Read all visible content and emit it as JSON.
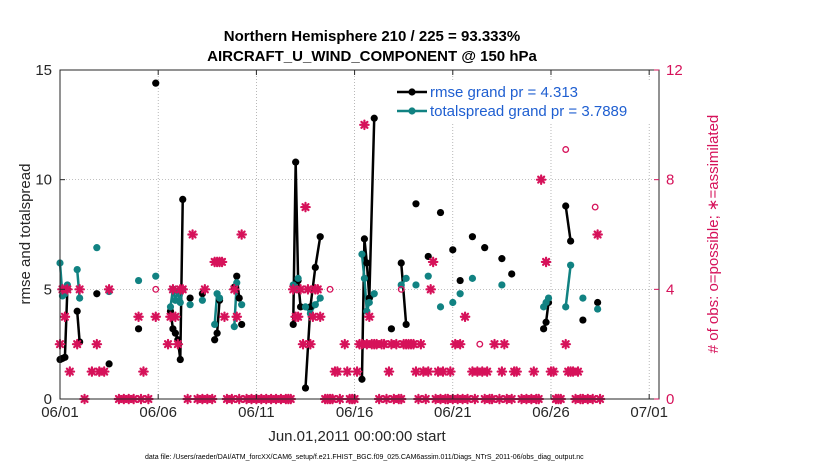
{
  "chart_data": {
    "type": "line",
    "title": "Northern Hemisphere 210 / 225 = 93.333%",
    "subtitle": "AIRCRAFT_U_WIND_COMPONENT @ 150 hPa",
    "xlabel": "Jun.01,2011 00:00:00 start",
    "ylabel": "rmse and totalspread",
    "ylabel_right": "# of obs: o=possible; ∗=assimilated",
    "footnote": "data file: /Users/raeder/DAI/ATM_forcXX/CAM6_setup/f.e21.FHIST_BGC.f09_025.CAM6assim.011/Diags_NTrS_2011-06/obs_diag_output.nc",
    "xlim": [
      0,
      30.5
    ],
    "ylim": [
      0,
      15
    ],
    "ylim_right": [
      0,
      12
    ],
    "grid": true,
    "legend_position": "top-right",
    "x_tick_labels": [
      {
        "x": 0,
        "label": "06/01"
      },
      {
        "x": 5,
        "label": "06/06"
      },
      {
        "x": 10,
        "label": "06/11"
      },
      {
        "x": 15,
        "label": "06/16"
      },
      {
        "x": 20,
        "label": "06/21"
      },
      {
        "x": 25,
        "label": "06/26"
      },
      {
        "x": 30,
        "label": "07/01"
      }
    ],
    "y_ticks": [
      0,
      5,
      10,
      15
    ],
    "y_ticks_right": [
      0,
      4,
      8,
      12
    ],
    "series": [
      {
        "name": "rmse grand pr = 4.313",
        "color": "#000000",
        "marker": "filled-circle",
        "segments": [
          [
            [
              0.0,
              1.8
            ],
            [
              0.125,
              1.85
            ],
            [
              0.25,
              1.9
            ],
            [
              0.375,
              5.0
            ]
          ],
          [
            [
              0.875,
              4.0
            ],
            [
              1.0,
              2.6
            ]
          ],
          [
            [
              1.875,
              4.8
            ]
          ],
          [
            [
              2.5,
              1.6
            ]
          ],
          [
            [
              4.0,
              3.2
            ]
          ],
          [
            [
              4.875,
              14.4
            ]
          ],
          [
            [
              5.625,
              4.0
            ],
            [
              5.75,
              3.2
            ],
            [
              5.875,
              3.0
            ],
            [
              6.0,
              2.7
            ],
            [
              6.125,
              1.8
            ],
            [
              6.25,
              9.1
            ]
          ],
          [
            [
              6.625,
              4.6
            ]
          ],
          [
            [
              7.25,
              4.8
            ]
          ],
          [
            [
              7.875,
              2.7
            ],
            [
              8.0,
              3.0
            ],
            [
              8.125,
              4.5
            ]
          ],
          [
            [
              8.875,
              5.1
            ],
            [
              9.0,
              5.6
            ],
            [
              9.125,
              4.6
            ]
          ],
          [
            [
              9.25,
              3.4
            ]
          ],
          [
            [
              11.875,
              3.4
            ],
            [
              12.0,
              10.8
            ],
            [
              12.125,
              5.4
            ],
            [
              12.25,
              4.2
            ]
          ],
          [
            [
              12.5,
              0.5
            ],
            [
              12.75,
              4.2
            ],
            [
              13.0,
              6.0
            ],
            [
              13.25,
              7.4
            ]
          ],
          [
            [
              15.375,
              0.9
            ],
            [
              15.5,
              7.3
            ],
            [
              15.625,
              6.2
            ],
            [
              15.75,
              4.6
            ],
            [
              16.0,
              12.8
            ]
          ],
          [
            [
              16.875,
              3.2
            ]
          ],
          [
            [
              17.375,
              6.2
            ],
            [
              17.625,
              3.4
            ]
          ],
          [
            [
              18.125,
              8.9
            ]
          ],
          [
            [
              18.75,
              6.5
            ]
          ],
          [
            [
              19.375,
              8.5
            ]
          ],
          [
            [
              20.0,
              6.8
            ]
          ],
          [
            [
              20.375,
              5.4
            ]
          ],
          [
            [
              21.0,
              7.4
            ]
          ],
          [
            [
              21.625,
              6.9
            ]
          ],
          [
            [
              22.5,
              6.4
            ]
          ],
          [
            [
              23.0,
              5.7
            ]
          ],
          [
            [
              24.625,
              3.2
            ],
            [
              24.75,
              3.5
            ],
            [
              24.875,
              4.4
            ]
          ],
          [
            [
              25.75,
              8.8
            ],
            [
              26.0,
              7.2
            ]
          ],
          [
            [
              26.625,
              3.6
            ]
          ],
          [
            [
              27.375,
              4.4
            ]
          ]
        ]
      },
      {
        "name": "totalspread grand pr = 3.7889",
        "color": "#118282",
        "marker": "filled-circle",
        "segments": [
          [
            [
              0.0,
              6.2
            ],
            [
              0.125,
              4.7
            ],
            [
              0.25,
              4.8
            ],
            [
              0.375,
              5.2
            ]
          ],
          [
            [
              0.875,
              5.9
            ],
            [
              1.0,
              4.6
            ]
          ],
          [
            [
              1.875,
              6.9
            ]
          ],
          [
            [
              2.5,
              4.9
            ]
          ],
          [
            [
              4.0,
              5.4
            ]
          ],
          [
            [
              4.875,
              5.6
            ]
          ],
          [
            [
              5.625,
              4.2
            ],
            [
              5.75,
              5.0
            ],
            [
              5.875,
              4.5
            ],
            [
              6.0,
              4.9
            ],
            [
              6.125,
              4.4
            ],
            [
              6.25,
              5.0
            ]
          ],
          [
            [
              6.625,
              4.3
            ]
          ],
          [
            [
              7.25,
              4.5
            ]
          ],
          [
            [
              7.875,
              3.4
            ],
            [
              8.0,
              4.8
            ],
            [
              8.125,
              4.6
            ]
          ],
          [
            [
              8.875,
              3.3
            ],
            [
              9.0,
              5.3
            ]
          ],
          [
            [
              9.25,
              4.3
            ]
          ],
          [
            [
              11.875,
              5.2
            ],
            [
              12.0,
              5.0
            ],
            [
              12.125,
              5.5
            ]
          ],
          [
            [
              12.5,
              4.2
            ],
            [
              12.75,
              3.9
            ],
            [
              13.0,
              4.3
            ],
            [
              13.25,
              4.6
            ]
          ],
          [
            [
              15.375,
              6.6
            ],
            [
              15.5,
              5.5
            ],
            [
              15.625,
              4.0
            ],
            [
              15.75,
              4.4
            ],
            [
              16.0,
              4.8
            ]
          ],
          [
            [
              17.375,
              5.2
            ],
            [
              17.625,
              5.5
            ]
          ],
          [
            [
              18.125,
              5.2
            ]
          ],
          [
            [
              18.75,
              5.6
            ]
          ],
          [
            [
              19.375,
              4.2
            ]
          ],
          [
            [
              20.0,
              4.4
            ]
          ],
          [
            [
              20.375,
              4.8
            ]
          ],
          [
            [
              21.0,
              5.5
            ]
          ],
          [
            [
              22.5,
              5.2
            ]
          ],
          [
            [
              24.625,
              4.2
            ],
            [
              24.75,
              4.4
            ],
            [
              24.875,
              4.6
            ]
          ],
          [
            [
              25.75,
              4.2
            ],
            [
              26.0,
              6.1
            ]
          ],
          [
            [
              26.625,
              4.6
            ]
          ],
          [
            [
              27.375,
              4.1
            ]
          ]
        ]
      }
    ],
    "obs_assimilated": {
      "name": "# of obs assimilated",
      "color": "#d6125a",
      "marker": "asterisk",
      "axis": "right",
      "points": [
        [
          0.0,
          2
        ],
        [
          0.125,
          4
        ],
        [
          0.25,
          3
        ],
        [
          0.375,
          4
        ],
        [
          0.5,
          1
        ],
        [
          0.875,
          2
        ],
        [
          1.0,
          4
        ],
        [
          1.25,
          0
        ],
        [
          1.625,
          1
        ],
        [
          1.875,
          2
        ],
        [
          2.0,
          1
        ],
        [
          2.25,
          1
        ],
        [
          2.5,
          4
        ],
        [
          3.0,
          0
        ],
        [
          3.25,
          0
        ],
        [
          3.5,
          0
        ],
        [
          3.75,
          0
        ],
        [
          4.0,
          3
        ],
        [
          4.125,
          0
        ],
        [
          4.25,
          1
        ],
        [
          4.5,
          0
        ],
        [
          4.875,
          3
        ],
        [
          5.5,
          2
        ],
        [
          5.625,
          3
        ],
        [
          5.75,
          4
        ],
        [
          5.875,
          3
        ],
        [
          6.0,
          2
        ],
        [
          6.125,
          4
        ],
        [
          6.25,
          4
        ],
        [
          6.5,
          0
        ],
        [
          6.75,
          6
        ],
        [
          7.0,
          0
        ],
        [
          7.25,
          0
        ],
        [
          7.375,
          4
        ],
        [
          7.5,
          0
        ],
        [
          7.75,
          0
        ],
        [
          7.875,
          5
        ],
        [
          8.0,
          5
        ],
        [
          8.125,
          5
        ],
        [
          8.25,
          5
        ],
        [
          8.375,
          3
        ],
        [
          8.5,
          0
        ],
        [
          8.75,
          0
        ],
        [
          8.875,
          4
        ],
        [
          9.0,
          3
        ],
        [
          9.125,
          0
        ],
        [
          9.25,
          6
        ],
        [
          9.5,
          0
        ],
        [
          9.75,
          0
        ],
        [
          10.0,
          0
        ],
        [
          10.25,
          0
        ],
        [
          10.5,
          0
        ],
        [
          10.75,
          0
        ],
        [
          11.0,
          0
        ],
        [
          11.25,
          0
        ],
        [
          11.5,
          0
        ],
        [
          11.625,
          0
        ],
        [
          11.75,
          0
        ],
        [
          11.875,
          4
        ],
        [
          12.0,
          3
        ],
        [
          12.125,
          3
        ],
        [
          12.25,
          4
        ],
        [
          12.375,
          2
        ],
        [
          12.5,
          7
        ],
        [
          12.625,
          4
        ],
        [
          12.75,
          2
        ],
        [
          12.875,
          3
        ],
        [
          13.0,
          4
        ],
        [
          13.125,
          4
        ],
        [
          13.25,
          3
        ],
        [
          13.5,
          0
        ],
        [
          13.625,
          0
        ],
        [
          13.75,
          0
        ],
        [
          13.875,
          0
        ],
        [
          14.0,
          1
        ],
        [
          14.125,
          1
        ],
        [
          14.25,
          0
        ],
        [
          14.5,
          2
        ],
        [
          14.625,
          1
        ],
        [
          14.75,
          0
        ],
        [
          14.875,
          0
        ],
        [
          15.0,
          0
        ],
        [
          15.125,
          1
        ],
        [
          15.25,
          2
        ],
        [
          15.375,
          2
        ],
        [
          15.5,
          10
        ],
        [
          15.625,
          2
        ],
        [
          15.75,
          3
        ],
        [
          15.875,
          2
        ],
        [
          16.0,
          2
        ],
        [
          16.125,
          2
        ],
        [
          16.25,
          0
        ],
        [
          16.375,
          2
        ],
        [
          16.5,
          2
        ],
        [
          16.625,
          0
        ],
        [
          16.75,
          1
        ],
        [
          16.875,
          2
        ],
        [
          17.0,
          0
        ],
        [
          17.125,
          2
        ],
        [
          17.25,
          0
        ],
        [
          17.375,
          0
        ],
        [
          17.5,
          2
        ],
        [
          17.625,
          2
        ],
        [
          17.75,
          2
        ],
        [
          17.875,
          2
        ],
        [
          18.0,
          2
        ],
        [
          18.125,
          1
        ],
        [
          18.25,
          0
        ],
        [
          18.375,
          2
        ],
        [
          18.5,
          1
        ],
        [
          18.625,
          0
        ],
        [
          18.75,
          1
        ],
        [
          18.875,
          4
        ],
        [
          19.0,
          5
        ],
        [
          19.125,
          0
        ],
        [
          19.25,
          1
        ],
        [
          19.375,
          0
        ],
        [
          19.5,
          1
        ],
        [
          19.625,
          0
        ],
        [
          19.75,
          0
        ],
        [
          19.875,
          1
        ],
        [
          20.0,
          0
        ],
        [
          20.125,
          2
        ],
        [
          20.25,
          0
        ],
        [
          20.375,
          2
        ],
        [
          20.5,
          0
        ],
        [
          20.625,
          3
        ],
        [
          20.75,
          0
        ],
        [
          21.0,
          1
        ],
        [
          21.125,
          0
        ],
        [
          21.25,
          1
        ],
        [
          21.5,
          1
        ],
        [
          21.625,
          0
        ],
        [
          21.75,
          1
        ],
        [
          21.875,
          0
        ],
        [
          22.0,
          0
        ],
        [
          22.125,
          2
        ],
        [
          22.375,
          0
        ],
        [
          22.5,
          1
        ],
        [
          22.625,
          2
        ],
        [
          22.75,
          0
        ],
        [
          23.0,
          0
        ],
        [
          23.125,
          1
        ],
        [
          23.25,
          1
        ],
        [
          23.5,
          0
        ],
        [
          23.75,
          0
        ],
        [
          24.0,
          0
        ],
        [
          24.125,
          1
        ],
        [
          24.25,
          0
        ],
        [
          24.375,
          0
        ],
        [
          24.5,
          8
        ],
        [
          24.75,
          5
        ],
        [
          25.0,
          1
        ],
        [
          25.125,
          1
        ],
        [
          25.25,
          0
        ],
        [
          25.375,
          0
        ],
        [
          25.5,
          0
        ],
        [
          25.75,
          2
        ],
        [
          25.875,
          1
        ],
        [
          26.0,
          1
        ],
        [
          26.125,
          1
        ],
        [
          26.25,
          0
        ],
        [
          26.375,
          1
        ],
        [
          26.5,
          0
        ],
        [
          26.625,
          0
        ],
        [
          26.875,
          0
        ],
        [
          27.125,
          0
        ],
        [
          27.375,
          6
        ],
        [
          27.5,
          0
        ]
      ]
    },
    "obs_possible": {
      "name": "# of obs possible",
      "color": "#d6125a",
      "marker": "open-circle",
      "axis": "right",
      "points": [
        [
          4.875,
          4.0
        ],
        [
          13.75,
          4.0
        ],
        [
          17.375,
          4.0
        ],
        [
          21.375,
          2.0
        ],
        [
          25.75,
          9.1
        ],
        [
          27.25,
          7.0
        ]
      ]
    }
  }
}
